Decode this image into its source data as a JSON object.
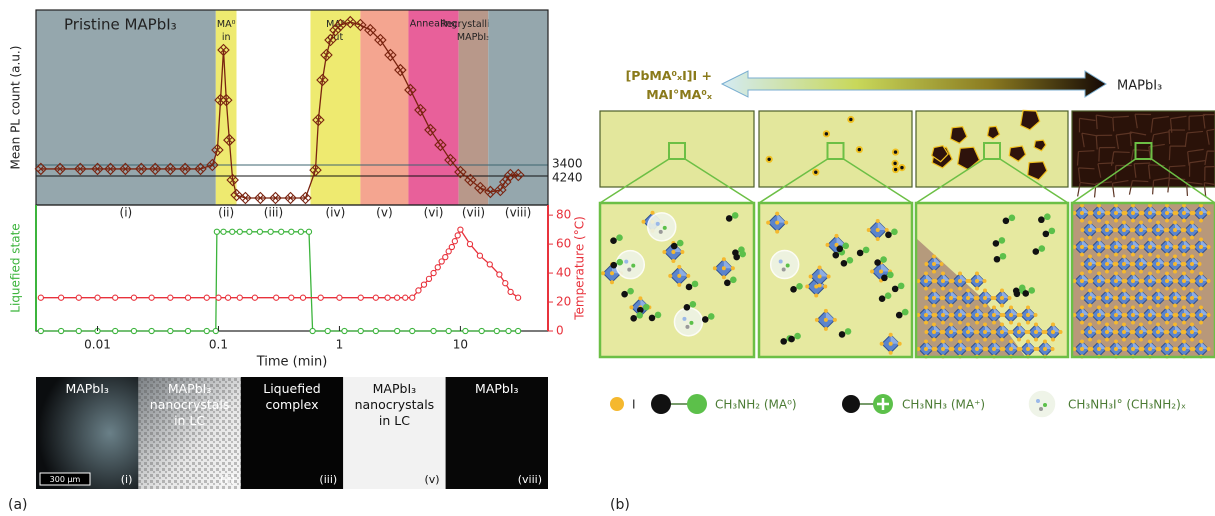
{
  "chart_data": [
    {
      "type": "line",
      "y_label": "Mean PL count (a.u.)",
      "log_x": true,
      "xlim": [
        0.0031,
        53
      ],
      "ylim": [
        0,
        100
      ],
      "regions": [
        {
          "x0": 0.0031,
          "x1": 0.095,
          "color": "#95a7ad",
          "label": "Pristine MAPbI₃",
          "stage": "(i)"
        },
        {
          "x0": 0.095,
          "x1": 0.141,
          "color": "#eeea70",
          "label": [
            "MA⁰",
            "in"
          ],
          "stage": "(ii)"
        },
        {
          "x0": 0.141,
          "x1": 0.576,
          "color": "#ffffff",
          "stage": "(iii)"
        },
        {
          "x0": 0.576,
          "x1": 1.49,
          "color": "#eeea70",
          "label": [
            "MA⁰",
            "out"
          ],
          "stage": "(iv)"
        },
        {
          "x0": 1.49,
          "x1": 3.72,
          "color": "#f4a590",
          "stage": "(v)"
        },
        {
          "x0": 3.72,
          "x1": 9.67,
          "color": "#e8609a",
          "label": "Annealing",
          "stage": "(vi)"
        },
        {
          "x0": 9.67,
          "x1": 17.0,
          "color": "#b8988a",
          "label": [
            "Recrystallized",
            "MAPbI₃"
          ],
          "stage": "(vii)"
        },
        {
          "x0": 17.0,
          "x1": 53,
          "color": "#95a7ad",
          "stage": "(viii)"
        }
      ],
      "right_labels": [
        "3400",
        "4240"
      ],
      "series": [
        {
          "color": "#7a2410",
          "marker": "diamond-cross",
          "x": [
            0.0034,
            0.0049,
            0.0072,
            0.01,
            0.0128,
            0.017,
            0.023,
            0.03,
            0.04,
            0.053,
            0.071,
            0.089,
            0.098,
            0.104,
            0.11,
            0.116,
            0.123,
            0.131,
            0.141,
            0.167,
            0.222,
            0.296,
            0.394,
            0.524,
            0.634,
            0.67,
            0.724,
            0.781,
            0.843,
            0.927,
            1.02,
            1.23,
            1.49,
            1.8,
            2.18,
            2.64,
            3.19,
            3.86,
            4.67,
            5.65,
            6.84,
            8.27,
            10.0,
            12.1,
            14.6,
            17.7,
            21.4,
            23.5,
            25.9,
            30.1
          ],
          "values": [
            18.5,
            18.5,
            18.5,
            18.5,
            18.5,
            18.5,
            18.5,
            18.5,
            18.5,
            18.5,
            18.5,
            20.5,
            28.2,
            53.8,
            79.5,
            53.8,
            33.3,
            12.8,
            5.1,
            3.6,
            3.6,
            3.6,
            3.6,
            3.6,
            17.9,
            43.6,
            64.1,
            76.9,
            84.6,
            89.7,
            92.3,
            93.8,
            92.3,
            89.7,
            84.6,
            76.9,
            69.2,
            59.0,
            48.7,
            38.5,
            30.8,
            23.1,
            16.9,
            12.8,
            8.7,
            6.7,
            7.7,
            11.8,
            15.4,
            15.4
          ]
        }
      ]
    },
    {
      "type": "line",
      "x_label": "Time (min)",
      "log_x": true,
      "xlim": [
        0.0031,
        53
      ],
      "xticks": [
        0.01,
        0.1,
        1,
        10
      ],
      "y_label": "Liquefied state",
      "y_color": "#3cb43c",
      "ylim": [
        0,
        1.27
      ],
      "y2_label": "Temperature (°C)",
      "y2_color": "#e8323c",
      "y2lim": [
        0,
        87
      ],
      "y2ticks": [
        0,
        20,
        40,
        60,
        80
      ],
      "series": [
        {
          "color": "#3cb43c",
          "marker": "circle",
          "x": [
            0.0034,
            0.005,
            0.007,
            0.01,
            0.014,
            0.02,
            0.028,
            0.04,
            0.056,
            0.08,
            0.095,
            0.097,
            0.11,
            0.13,
            0.15,
            0.18,
            0.22,
            0.27,
            0.33,
            0.4,
            0.48,
            0.56,
            0.6,
            0.8,
            1.1,
            1.5,
            2,
            3,
            4,
            6,
            8,
            11,
            15,
            20,
            25,
            30
          ],
          "values": [
            0,
            0,
            0,
            0,
            0,
            0,
            0,
            0,
            0,
            0,
            0,
            1,
            1,
            1,
            1,
            1,
            1,
            1,
            1,
            1,
            1,
            1,
            0,
            0,
            0,
            0,
            0,
            0,
            0,
            0,
            0,
            0,
            0,
            0,
            0,
            0
          ]
        },
        {
          "color": "#e8323c",
          "marker": "circle",
          "axis": "y2",
          "x": [
            0.0034,
            0.005,
            0.007,
            0.01,
            0.014,
            0.02,
            0.028,
            0.04,
            0.056,
            0.08,
            0.1,
            0.12,
            0.15,
            0.2,
            0.3,
            0.4,
            0.5,
            0.7,
            1,
            1.5,
            2,
            2.5,
            3,
            3.5,
            4,
            4.5,
            5,
            5.5,
            6,
            6.5,
            7,
            7.5,
            8,
            8.5,
            9,
            9.5,
            10,
            12,
            14.5,
            17.5,
            21,
            23.5,
            26,
            30
          ],
          "values": [
            23,
            23,
            23,
            23,
            23,
            23,
            23,
            23,
            23,
            23,
            23,
            23,
            23,
            23,
            23,
            23,
            23,
            23,
            23,
            23,
            23,
            23,
            23,
            23,
            23,
            28,
            32,
            36,
            40,
            44,
            48,
            51,
            55,
            58,
            62,
            66,
            70,
            60,
            52,
            46,
            39,
            33,
            27,
            23
          ]
        }
      ]
    }
  ],
  "micrographs": {
    "scale_bar": "300 μm",
    "panels": [
      {
        "label": [
          "MAPbI₃"
        ],
        "stage": "(i)"
      },
      {
        "label": [
          "MAPbI₃",
          "nanocrystals",
          "in LC"
        ],
        "stage": "(ii)"
      },
      {
        "label": [
          "Liquefied",
          "complex"
        ],
        "stage": "(iii)"
      },
      {
        "label": [
          "MAPbI₃",
          "nanocrystals",
          "in LC"
        ],
        "stage": "(v)"
      },
      {
        "label": [
          "MAPbI₃"
        ],
        "stage": "(viii)"
      }
    ]
  },
  "diagram": {
    "arrow_left": [
      "[PbMA⁰ₓI]I +",
      "MAI°MA⁰ₓ"
    ],
    "arrow_right": "MAPbI₃",
    "legend": [
      "I",
      "CH₃NH₂ (MA⁰)",
      "CH₃NH₃ (MA⁺)",
      "CH₃NH₃I° (CH₃NH₂)ₓ"
    ]
  },
  "panel_labels": [
    "(a)",
    "(b)"
  ]
}
